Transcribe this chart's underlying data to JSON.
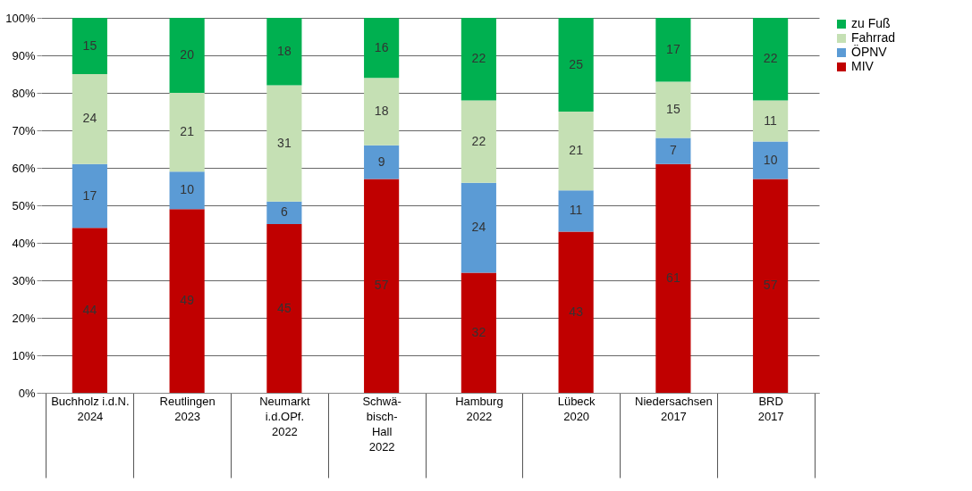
{
  "chart_data": {
    "type": "bar",
    "stacked": true,
    "data_labels": true,
    "grid": "y",
    "legend": "right",
    "categories": [
      "Buchholz i.d.N.\n\n\n\n2024",
      "Reutlingen\n\n\n\n2023",
      "Neumarkt\ni.d.OPf.\n\n\n2022",
      "Schwä-\nbisch-\nHall\n\n2022",
      "Hamburg\n\n\n\n2022",
      "Lübeck\n\n\n\n2020",
      "Niedersachsen\n\n\n\n2017",
      "BRD\n\n\n\n2017"
    ],
    "ylim": [
      0,
      100
    ],
    "yticks": [
      {
        "value": 0,
        "label": "0%"
      },
      {
        "value": 10,
        "label": "10%"
      },
      {
        "value": 20,
        "label": "20%"
      },
      {
        "value": 30,
        "label": "30%"
      },
      {
        "value": 40,
        "label": "40%"
      },
      {
        "value": 50,
        "label": "50%"
      },
      {
        "value": 60,
        "label": "60%"
      },
      {
        "value": 70,
        "label": "70%"
      },
      {
        "value": 80,
        "label": "80%"
      },
      {
        "value": 90,
        "label": "90%"
      },
      {
        "value": 100,
        "label": "100%"
      }
    ],
    "series": [
      {
        "name": "MIV",
        "color": "#c00000",
        "values": [
          44,
          49,
          45,
          57,
          32,
          43,
          61,
          57
        ]
      },
      {
        "name": "ÖPNV",
        "color": "#5b9bd5",
        "values": [
          17,
          10,
          6,
          9,
          24,
          11,
          7,
          10
        ]
      },
      {
        "name": "Fahrrad",
        "color": "#c5e0b4",
        "values": [
          24,
          21,
          31,
          18,
          22,
          21,
          15,
          11
        ]
      },
      {
        "name": "zu Fuß",
        "color": "#00b050",
        "values": [
          15,
          20,
          18,
          16,
          22,
          25,
          17,
          22
        ]
      }
    ]
  }
}
